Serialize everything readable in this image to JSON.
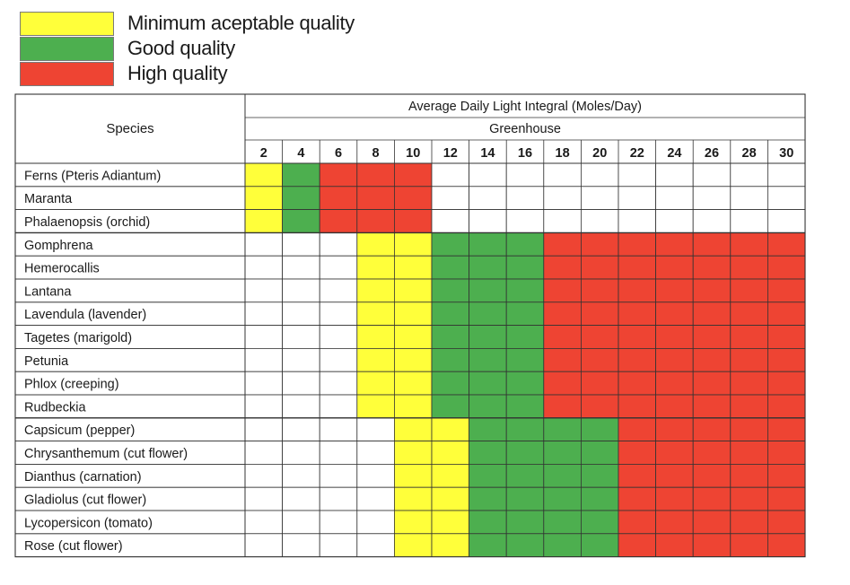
{
  "colors": {
    "minimum": "#ffff3a",
    "good": "#4daf4f",
    "high": "#ee4433",
    "empty": "#ffffff",
    "grid": "#333333"
  },
  "legend": [
    {
      "key": "minimum",
      "label": "Minimum aceptable quality"
    },
    {
      "key": "good",
      "label": "Good quality"
    },
    {
      "key": "high",
      "label": "High quality"
    }
  ],
  "chart_data": {
    "type": "table",
    "species_header": "Species",
    "column_group_title": "Average Daily Light Integral (Moles/Day)",
    "column_subgroup_title": "Greenhouse",
    "columns": [
      "2",
      "4",
      "6",
      "8",
      "10",
      "12",
      "14",
      "16",
      "18",
      "20",
      "22",
      "24",
      "26",
      "28",
      "30"
    ],
    "groups": [
      {
        "rows": [
          {
            "species": "Ferns (Pteris Adiantum)",
            "cells": [
              "minimum",
              "good",
              "high",
              "high",
              "high",
              "",
              "",
              "",
              "",
              "",
              "",
              "",
              "",
              "",
              ""
            ]
          },
          {
            "species": "Maranta",
            "cells": [
              "minimum",
              "good",
              "high",
              "high",
              "high",
              "",
              "",
              "",
              "",
              "",
              "",
              "",
              "",
              "",
              ""
            ]
          },
          {
            "species": "Phalaenopsis (orchid)",
            "cells": [
              "minimum",
              "good",
              "high",
              "high",
              "high",
              "",
              "",
              "",
              "",
              "",
              "",
              "",
              "",
              "",
              ""
            ]
          }
        ]
      },
      {
        "rows": [
          {
            "species": "Gomphrena",
            "cells": [
              "",
              "",
              "",
              "minimum",
              "minimum",
              "good",
              "good",
              "good",
              "high",
              "high",
              "high",
              "high",
              "high",
              "high",
              "high"
            ]
          },
          {
            "species": "Hemerocallis",
            "cells": [
              "",
              "",
              "",
              "minimum",
              "minimum",
              "good",
              "good",
              "good",
              "high",
              "high",
              "high",
              "high",
              "high",
              "high",
              "high"
            ]
          },
          {
            "species": "Lantana",
            "cells": [
              "",
              "",
              "",
              "minimum",
              "minimum",
              "good",
              "good",
              "good",
              "high",
              "high",
              "high",
              "high",
              "high",
              "high",
              "high"
            ]
          },
          {
            "species": "Lavendula (lavender)",
            "cells": [
              "",
              "",
              "",
              "minimum",
              "minimum",
              "good",
              "good",
              "good",
              "high",
              "high",
              "high",
              "high",
              "high",
              "high",
              "high"
            ]
          },
          {
            "species": "Tagetes (marigold)",
            "cells": [
              "",
              "",
              "",
              "minimum",
              "minimum",
              "good",
              "good",
              "good",
              "high",
              "high",
              "high",
              "high",
              "high",
              "high",
              "high"
            ]
          },
          {
            "species": "Petunia",
            "cells": [
              "",
              "",
              "",
              "minimum",
              "minimum",
              "good",
              "good",
              "good",
              "high",
              "high",
              "high",
              "high",
              "high",
              "high",
              "high"
            ]
          },
          {
            "species": "Phlox (creeping)",
            "cells": [
              "",
              "",
              "",
              "minimum",
              "minimum",
              "good",
              "good",
              "good",
              "high",
              "high",
              "high",
              "high",
              "high",
              "high",
              "high"
            ]
          },
          {
            "species": "Rudbeckia",
            "cells": [
              "",
              "",
              "",
              "minimum",
              "minimum",
              "good",
              "good",
              "good",
              "high",
              "high",
              "high",
              "high",
              "high",
              "high",
              "high"
            ]
          }
        ]
      },
      {
        "rows": [
          {
            "species": "Capsicum (pepper)",
            "cells": [
              "",
              "",
              "",
              "",
              "minimum",
              "minimum",
              "good",
              "good",
              "good",
              "good",
              "high",
              "high",
              "high",
              "high",
              "high"
            ]
          },
          {
            "species": "Chrysanthemum (cut flower)",
            "cells": [
              "",
              "",
              "",
              "",
              "minimum",
              "minimum",
              "good",
              "good",
              "good",
              "good",
              "high",
              "high",
              "high",
              "high",
              "high"
            ]
          },
          {
            "species": "Dianthus (carnation)",
            "cells": [
              "",
              "",
              "",
              "",
              "minimum",
              "minimum",
              "good",
              "good",
              "good",
              "good",
              "high",
              "high",
              "high",
              "high",
              "high"
            ]
          },
          {
            "species": "Gladiolus (cut flower)",
            "cells": [
              "",
              "",
              "",
              "",
              "minimum",
              "minimum",
              "good",
              "good",
              "good",
              "good",
              "high",
              "high",
              "high",
              "high",
              "high"
            ]
          },
          {
            "species": "Lycopersicon (tomato)",
            "cells": [
              "",
              "",
              "",
              "",
              "minimum",
              "minimum",
              "good",
              "good",
              "good",
              "good",
              "high",
              "high",
              "high",
              "high",
              "high"
            ]
          },
          {
            "species": "Rose (cut flower)",
            "cells": [
              "",
              "",
              "",
              "",
              "minimum",
              "minimum",
              "good",
              "good",
              "good",
              "good",
              "high",
              "high",
              "high",
              "high",
              "high"
            ]
          }
        ]
      }
    ]
  }
}
